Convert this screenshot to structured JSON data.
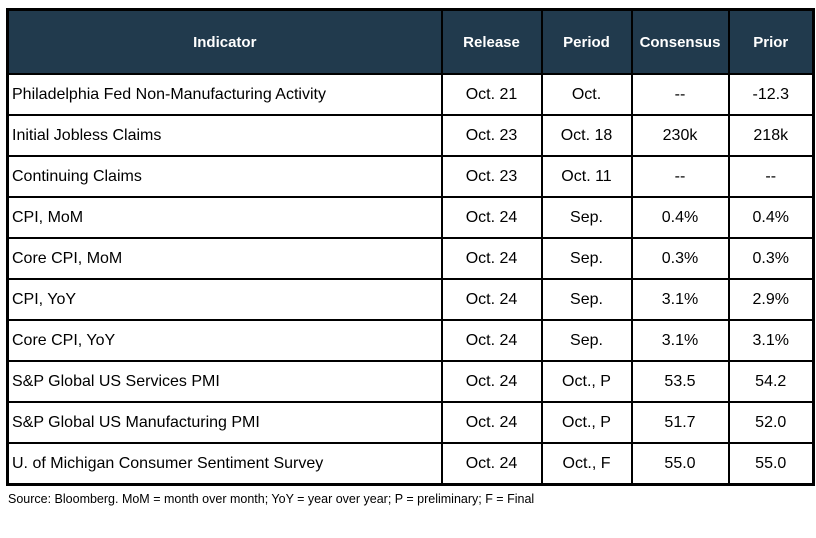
{
  "table": {
    "columns": [
      {
        "key": "indicator",
        "label": "Indicator"
      },
      {
        "key": "release",
        "label": "Release"
      },
      {
        "key": "period",
        "label": "Period"
      },
      {
        "key": "consensus",
        "label": "Consensus"
      },
      {
        "key": "prior",
        "label": "Prior"
      }
    ],
    "rows": [
      {
        "indicator": "Philadelphia Fed Non-Manufacturing Activity",
        "release": "Oct. 21",
        "period": "Oct.",
        "consensus": "--",
        "prior": "-12.3"
      },
      {
        "indicator": "Initial Jobless Claims",
        "release": "Oct. 23",
        "period": "Oct. 18",
        "consensus": "230k",
        "prior": "218k"
      },
      {
        "indicator": "Continuing Claims",
        "release": "Oct. 23",
        "period": "Oct. 11",
        "consensus": "--",
        "prior": "--"
      },
      {
        "indicator": "CPI, MoM",
        "release": "Oct. 24",
        "period": "Sep.",
        "consensus": "0.4%",
        "prior": "0.4%"
      },
      {
        "indicator": "Core CPI, MoM",
        "release": "Oct. 24",
        "period": "Sep.",
        "consensus": "0.3%",
        "prior": "0.3%"
      },
      {
        "indicator": "CPI, YoY",
        "release": "Oct. 24",
        "period": "Sep.",
        "consensus": "3.1%",
        "prior": "2.9%"
      },
      {
        "indicator": "Core CPI, YoY",
        "release": "Oct. 24",
        "period": "Sep.",
        "consensus": "3.1%",
        "prior": "3.1%"
      },
      {
        "indicator": "S&P Global US Services PMI",
        "release": "Oct. 24",
        "period": "Oct., P",
        "consensus": "53.5",
        "prior": "54.2"
      },
      {
        "indicator": "S&P Global US Manufacturing PMI",
        "release": "Oct. 24",
        "period": "Oct., P",
        "consensus": "51.7",
        "prior": "52.0"
      },
      {
        "indicator": "U. of Michigan Consumer Sentiment Survey",
        "release": "Oct. 24",
        "period": "Oct., F",
        "consensus": "55.0",
        "prior": "55.0"
      }
    ]
  },
  "footer": {
    "source_note": "Source: Bloomberg. MoM = month over month; YoY = year over year; P = preliminary; F = Final"
  },
  "colors": {
    "header_bg": "#213A4D",
    "header_text": "#FFFFFF",
    "grid_border": "#000000"
  }
}
